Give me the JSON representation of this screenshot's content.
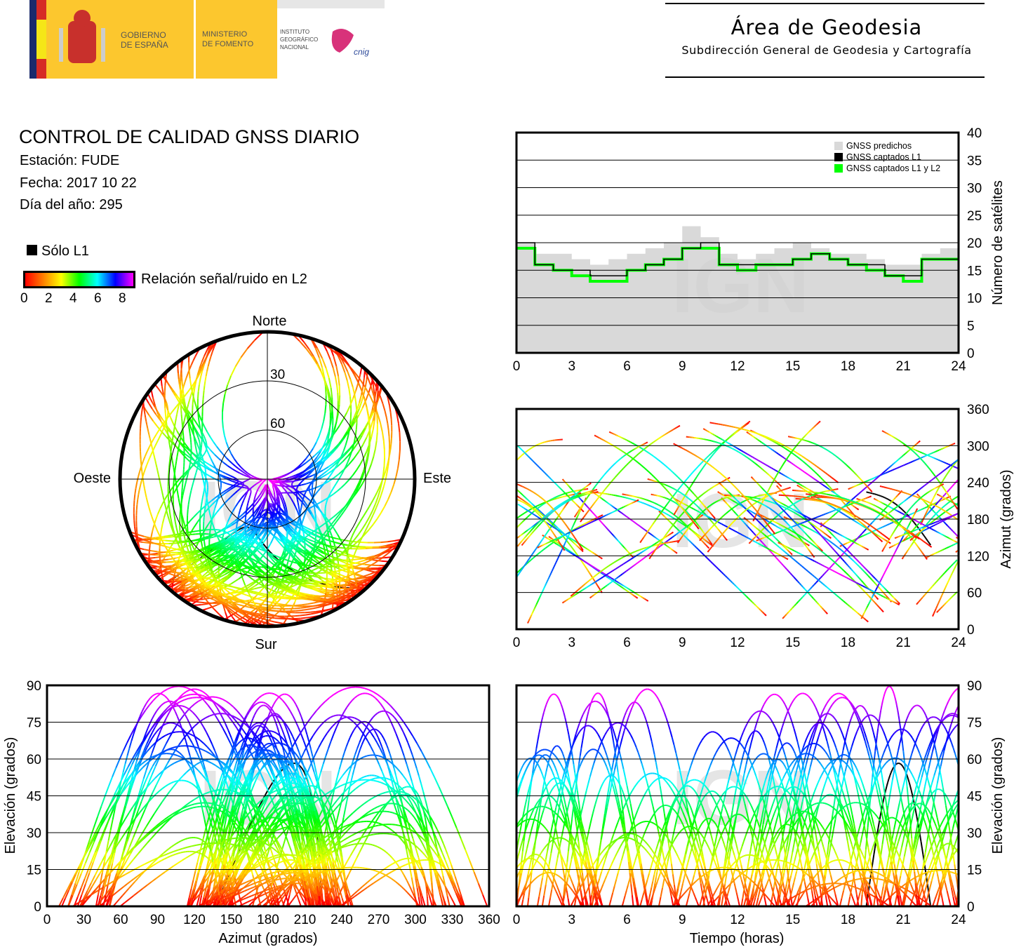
{
  "header": {
    "logo_text": [
      "GOBIERNO DE ESPAÑA",
      "MINISTERIO DE FOMENTO",
      "INSTITUTO GEOGRÁFICO NACIONAL",
      "cnig"
    ],
    "area_title": "Área de Geodesia",
    "area_subtitle": "Subdirección General de Geodesia y Cartografía"
  },
  "info": {
    "title": "CONTROL DE CALIDAD GNSS DIARIO",
    "station": "Estación: FUDE",
    "date": "Fecha: 2017 10 22",
    "doy": "Día del año: 295"
  },
  "legend": {
    "l1_only": "Sólo L1",
    "snr_label": "Relación señal/ruido en L2",
    "snr_ticks": [
      "0",
      "2",
      "4",
      "6",
      "8"
    ],
    "colors": {
      "l1_only": "#000000",
      "predicted": "#d9d9d9",
      "captured_l1": "#000000",
      "captured_l1_l2": "#00ff00"
    }
  },
  "watermark": "IGN",
  "chart_data": [
    {
      "type": "polar",
      "name": "skyplot",
      "directions": {
        "north": "Norte",
        "south": "Sur",
        "west": "Oeste",
        "east": "Este"
      },
      "ring_labels": [
        "30",
        "60"
      ],
      "rings": [
        30,
        60
      ],
      "color_scale": "SNR L2 0–8 (red→magenta)"
    },
    {
      "type": "area",
      "name": "satellites",
      "ylabel": "Número de satélites",
      "ylim": [
        0,
        40
      ],
      "yticks": [
        "0",
        "5",
        "10",
        "15",
        "20",
        "25",
        "30",
        "35",
        "40"
      ],
      "xlim": [
        0,
        24
      ],
      "xticks": [
        "0",
        "3",
        "6",
        "9",
        "12",
        "15",
        "18",
        "21",
        "24"
      ],
      "grid": true,
      "legend_position": "top-right",
      "series": [
        {
          "name": "GNSS predichos",
          "x": [
            0,
            1,
            2,
            3,
            4,
            5,
            6,
            7,
            8,
            9,
            10,
            11,
            12,
            13,
            14,
            15,
            16,
            17,
            18,
            19,
            20,
            21,
            22,
            23,
            24
          ],
          "values": [
            20,
            18,
            18,
            17,
            16,
            17,
            18,
            19,
            20,
            23,
            21,
            18,
            17,
            18,
            19,
            20,
            19,
            18,
            18,
            17,
            16,
            16,
            18,
            19,
            19
          ]
        },
        {
          "name": "GNSS captados L1",
          "x": [
            0,
            1,
            2,
            3,
            4,
            5,
            6,
            7,
            8,
            9,
            10,
            11,
            12,
            13,
            14,
            15,
            16,
            17,
            18,
            19,
            20,
            21,
            22,
            23,
            24
          ],
          "values": [
            20,
            16,
            15,
            15,
            14,
            14,
            15,
            16,
            17,
            19,
            20,
            16,
            16,
            16,
            16,
            17,
            18,
            17,
            16,
            16,
            14,
            14,
            17,
            17,
            18
          ]
        },
        {
          "name": "GNSS captados L1 y L2",
          "x": [
            0,
            1,
            2,
            3,
            4,
            5,
            6,
            7,
            8,
            9,
            10,
            11,
            12,
            13,
            14,
            15,
            16,
            17,
            18,
            19,
            20,
            21,
            22,
            23,
            24
          ],
          "values": [
            19,
            16,
            15,
            14,
            13,
            13,
            15,
            16,
            17,
            19,
            19,
            16,
            15,
            16,
            16,
            17,
            18,
            17,
            16,
            15,
            14,
            13,
            17,
            17,
            17
          ]
        }
      ]
    },
    {
      "type": "scatter",
      "name": "azimuth-time",
      "ylabel": "Azimut (grados)",
      "ylim": [
        0,
        360
      ],
      "yticks": [
        "0",
        "60",
        "120",
        "180",
        "240",
        "300",
        "360"
      ],
      "xlim": [
        0,
        24
      ],
      "xticks": [
        "0",
        "3",
        "6",
        "9",
        "12",
        "15",
        "18",
        "21",
        "24"
      ],
      "grid": true
    },
    {
      "type": "scatter",
      "name": "elevation-azimuth",
      "xlabel": "Azimut (grados)",
      "ylabel": "Elevación (grados)",
      "xlim": [
        0,
        360
      ],
      "xticks": [
        "0",
        "30",
        "60",
        "90",
        "120",
        "150",
        "180",
        "210",
        "240",
        "270",
        "300",
        "330",
        "360"
      ],
      "ylim": [
        0,
        90
      ],
      "yticks": [
        "0",
        "15",
        "30",
        "45",
        "60",
        "75",
        "90"
      ],
      "grid": true
    },
    {
      "type": "scatter",
      "name": "elevation-time",
      "xlabel": "Tiempo (horas)",
      "ylabel": "Elevación (grados)",
      "xlim": [
        0,
        24
      ],
      "xticks": [
        "0",
        "3",
        "6",
        "9",
        "12",
        "15",
        "18",
        "21",
        "24"
      ],
      "ylim": [
        0,
        90
      ],
      "yticks": [
        "0",
        "15",
        "30",
        "45",
        "60",
        "75",
        "90"
      ],
      "grid": true
    }
  ]
}
